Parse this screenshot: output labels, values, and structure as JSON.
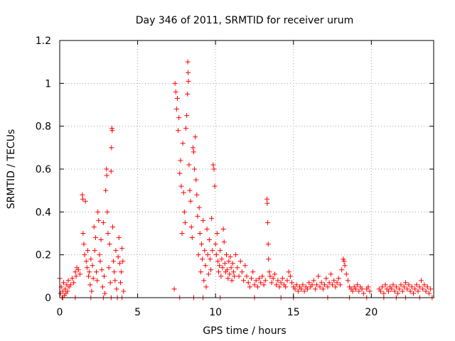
{
  "chart_data": {
    "type": "scatter",
    "title": "Day 346 of 2011, SRMTID for receiver urum",
    "xlabel": "GPS time / hours",
    "ylabel": "SRMTID / TECUs",
    "xlim": [
      0,
      24
    ],
    "ylim": [
      0,
      1.2
    ],
    "xticks": [
      0,
      5,
      10,
      15,
      20
    ],
    "xtick_labels": [
      "0",
      "5",
      "10",
      "15",
      "20"
    ],
    "yticks": [
      0,
      0.2,
      0.4,
      0.6,
      0.8,
      1.0,
      1.2
    ],
    "ytick_labels": [
      "0",
      "0.2",
      "0.4",
      "0.6",
      "0.8",
      "1",
      "1.2"
    ],
    "grid": true,
    "marker": "+",
    "color": "#ff0000",
    "series": [
      {
        "name": "SRMTID",
        "points": [
          [
            0.0,
            0.09
          ],
          [
            0.05,
            0.02
          ],
          [
            0.1,
            0.05
          ],
          [
            0.15,
            0.0
          ],
          [
            0.2,
            0.03
          ],
          [
            0.25,
            0.07
          ],
          [
            0.3,
            0.01
          ],
          [
            0.35,
            0.04
          ],
          [
            0.4,
            0.02
          ],
          [
            0.45,
            0.06
          ],
          [
            0.5,
            0.03
          ],
          [
            0.55,
            0.08
          ],
          [
            0.6,
            0.05
          ],
          [
            0.7,
            0.06
          ],
          [
            0.8,
            0.09
          ],
          [
            0.9,
            0.07
          ],
          [
            1.0,
            0.12
          ],
          [
            1.05,
            0.1
          ],
          [
            1.1,
            0.14
          ],
          [
            1.2,
            0.13
          ],
          [
            1.3,
            0.11
          ],
          [
            1.45,
            0.48
          ],
          [
            1.48,
            0.46
          ],
          [
            1.5,
            0.3
          ],
          [
            1.55,
            0.25
          ],
          [
            1.6,
            0.2
          ],
          [
            1.65,
            0.45
          ],
          [
            1.7,
            0.17
          ],
          [
            1.75,
            0.14
          ],
          [
            1.8,
            0.22
          ],
          [
            1.85,
            0.1
          ],
          [
            1.9,
            0.12
          ],
          [
            1.95,
            0.06
          ],
          [
            2.0,
            0.18
          ],
          [
            2.05,
            0.03
          ],
          [
            2.1,
            0.15
          ],
          [
            2.15,
            0.09
          ],
          [
            2.2,
            0.33
          ],
          [
            2.25,
            0.22
          ],
          [
            2.3,
            0.28
          ],
          [
            2.35,
            0.12
          ],
          [
            2.4,
            0.08
          ],
          [
            2.45,
            0.4
          ],
          [
            2.5,
            0.36
          ],
          [
            2.55,
            0.2
          ],
          [
            2.6,
            0.17
          ],
          [
            2.65,
            0.27
          ],
          [
            2.7,
            0.13
          ],
          [
            2.75,
            0.05
          ],
          [
            2.8,
            0.35
          ],
          [
            2.85,
            0.1
          ],
          [
            2.9,
            0.02
          ],
          [
            2.95,
            0.5
          ],
          [
            3.0,
            0.6
          ],
          [
            3.02,
            0.57
          ],
          [
            3.05,
            0.4
          ],
          [
            3.1,
            0.3
          ],
          [
            3.15,
            0.14
          ],
          [
            3.2,
            0.25
          ],
          [
            3.25,
            0.07
          ],
          [
            3.3,
            0.59
          ],
          [
            3.32,
            0.7
          ],
          [
            3.35,
            0.79
          ],
          [
            3.37,
            0.78
          ],
          [
            3.4,
            0.33
          ],
          [
            3.45,
            0.17
          ],
          [
            3.5,
            0.12
          ],
          [
            3.55,
            0.08
          ],
          [
            3.6,
            0.22
          ],
          [
            3.65,
            0.04
          ],
          [
            3.7,
            0.0
          ],
          [
            3.75,
            0.19
          ],
          [
            3.8,
            0.28
          ],
          [
            3.85,
            0.16
          ],
          [
            3.9,
            0.07
          ],
          [
            3.95,
            0.12
          ],
          [
            4.0,
            0.23
          ],
          [
            4.05,
            0.17
          ],
          [
            4.1,
            0.03
          ],
          [
            7.35,
            0.04
          ],
          [
            7.4,
            1.0
          ],
          [
            7.45,
            0.96
          ],
          [
            7.5,
            0.88
          ],
          [
            7.55,
            0.93
          ],
          [
            7.6,
            0.78
          ],
          [
            7.65,
            0.84
          ],
          [
            7.7,
            0.58
          ],
          [
            7.75,
            0.64
          ],
          [
            7.8,
            0.52
          ],
          [
            7.85,
            0.3
          ],
          [
            7.9,
            0.72
          ],
          [
            7.95,
            0.49
          ],
          [
            8.0,
            0.4
          ],
          [
            8.05,
            0.35
          ],
          [
            8.1,
            0.79
          ],
          [
            8.15,
            0.85
          ],
          [
            8.2,
            0.95
          ],
          [
            8.22,
            1.1
          ],
          [
            8.24,
            1.05
          ],
          [
            8.26,
            1.01
          ],
          [
            8.3,
            0.62
          ],
          [
            8.35,
            0.5
          ],
          [
            8.4,
            0.45
          ],
          [
            8.45,
            0.33
          ],
          [
            8.5,
            0.28
          ],
          [
            8.55,
            0.7
          ],
          [
            8.6,
            0.68
          ],
          [
            8.65,
            0.6
          ],
          [
            8.7,
            0.75
          ],
          [
            8.75,
            0.55
          ],
          [
            8.8,
            0.48
          ],
          [
            8.85,
            0.38
          ],
          [
            8.9,
            0.2
          ],
          [
            8.95,
            0.42
          ],
          [
            9.0,
            0.3
          ],
          [
            9.05,
            0.12
          ],
          [
            9.1,
            0.25
          ],
          [
            9.15,
            0.18
          ],
          [
            9.2,
            0.36
          ],
          [
            9.25,
            0.08
          ],
          [
            9.3,
            0.22
          ],
          [
            9.35,
            0.15
          ],
          [
            9.4,
            0.05
          ],
          [
            9.45,
            0.32
          ],
          [
            9.5,
            0.2
          ],
          [
            9.55,
            0.11
          ],
          [
            9.6,
            0.27
          ],
          [
            9.65,
            0.18
          ],
          [
            9.7,
            0.13
          ],
          [
            9.75,
            0.37
          ],
          [
            9.8,
            0.22
          ],
          [
            9.85,
            0.62
          ],
          [
            9.9,
            0.6
          ],
          [
            9.95,
            0.52
          ],
          [
            10.0,
            0.25
          ],
          [
            10.05,
            0.2
          ],
          [
            10.1,
            0.3
          ],
          [
            10.15,
            0.17
          ],
          [
            10.2,
            0.12
          ],
          [
            10.25,
            0.15
          ],
          [
            10.3,
            0.22
          ],
          [
            10.35,
            0.1
          ],
          [
            10.4,
            0.18
          ],
          [
            10.45,
            0.14
          ],
          [
            10.5,
            0.32
          ],
          [
            10.55,
            0.26
          ],
          [
            10.6,
            0.16
          ],
          [
            10.65,
            0.12
          ],
          [
            10.7,
            0.2
          ],
          [
            10.75,
            0.13
          ],
          [
            10.8,
            0.09
          ],
          [
            10.85,
            0.17
          ],
          [
            10.9,
            0.11
          ],
          [
            10.95,
            0.19
          ],
          [
            11.0,
            0.14
          ],
          [
            11.05,
            0.08
          ],
          [
            11.1,
            0.16
          ],
          [
            11.15,
            0.12
          ],
          [
            11.2,
            0.1
          ],
          [
            11.3,
            0.2
          ],
          [
            11.4,
            0.14
          ],
          [
            11.5,
            0.1
          ],
          [
            11.6,
            0.17
          ],
          [
            11.7,
            0.12
          ],
          [
            11.8,
            0.08
          ],
          [
            11.9,
            0.15
          ],
          [
            12.0,
            0.1
          ],
          [
            12.1,
            0.07
          ],
          [
            12.2,
            0.05
          ],
          [
            12.3,
            0.09
          ],
          [
            12.4,
            0.12
          ],
          [
            12.5,
            0.06
          ],
          [
            12.6,
            0.08
          ],
          [
            12.7,
            0.05
          ],
          [
            12.8,
            0.09
          ],
          [
            12.9,
            0.07
          ],
          [
            13.0,
            0.1
          ],
          [
            13.1,
            0.06
          ],
          [
            13.2,
            0.08
          ],
          [
            13.3,
            0.46
          ],
          [
            13.32,
            0.44
          ],
          [
            13.35,
            0.35
          ],
          [
            13.38,
            0.25
          ],
          [
            13.4,
            0.18
          ],
          [
            13.45,
            0.12
          ],
          [
            13.5,
            0.1
          ],
          [
            13.6,
            0.07
          ],
          [
            13.7,
            0.09
          ],
          [
            13.8,
            0.11
          ],
          [
            13.9,
            0.06
          ],
          [
            14.0,
            0.08
          ],
          [
            14.1,
            0.05
          ],
          [
            14.2,
            0.07
          ],
          [
            14.3,
            0.09
          ],
          [
            14.4,
            0.06
          ],
          [
            14.5,
            0.05
          ],
          [
            14.6,
            0.08
          ],
          [
            14.7,
            0.12
          ],
          [
            14.8,
            0.1
          ],
          [
            14.9,
            0.07
          ],
          [
            15.0,
            0.05
          ],
          [
            15.1,
            0.04
          ],
          [
            15.2,
            0.06
          ],
          [
            15.3,
            0.03
          ],
          [
            15.4,
            0.05
          ],
          [
            15.5,
            0.04
          ],
          [
            15.6,
            0.06
          ],
          [
            15.7,
            0.03
          ],
          [
            15.8,
            0.05
          ],
          [
            15.9,
            0.04
          ],
          [
            16.0,
            0.07
          ],
          [
            16.1,
            0.05
          ],
          [
            16.2,
            0.06
          ],
          [
            16.3,
            0.08
          ],
          [
            16.4,
            0.04
          ],
          [
            16.5,
            0.06
          ],
          [
            16.6,
            0.1
          ],
          [
            16.7,
            0.05
          ],
          [
            16.8,
            0.07
          ],
          [
            16.9,
            0.04
          ],
          [
            17.0,
            0.06
          ],
          [
            17.1,
            0.09
          ],
          [
            17.2,
            0.05
          ],
          [
            17.3,
            0.07
          ],
          [
            17.4,
            0.11
          ],
          [
            17.5,
            0.06
          ],
          [
            17.6,
            0.08
          ],
          [
            17.7,
            0.05
          ],
          [
            17.8,
            0.07
          ],
          [
            17.9,
            0.09
          ],
          [
            18.0,
            0.06
          ],
          [
            18.1,
            0.13
          ],
          [
            18.2,
            0.18
          ],
          [
            18.25,
            0.17
          ],
          [
            18.3,
            0.15
          ],
          [
            18.4,
            0.11
          ],
          [
            18.5,
            0.08
          ],
          [
            18.6,
            0.05
          ],
          [
            18.7,
            0.04
          ],
          [
            18.8,
            0.03
          ],
          [
            18.9,
            0.05
          ],
          [
            19.0,
            0.04
          ],
          [
            19.1,
            0.06
          ],
          [
            19.2,
            0.03
          ],
          [
            19.3,
            0.05
          ],
          [
            19.4,
            0.04
          ],
          [
            19.5,
            0.02
          ],
          [
            19.7,
            0.04
          ],
          [
            19.8,
            0.05
          ],
          [
            19.9,
            0.03
          ],
          [
            20.5,
            0.04
          ],
          [
            20.6,
            0.03
          ],
          [
            20.7,
            0.05
          ],
          [
            20.8,
            0.02
          ],
          [
            20.9,
            0.06
          ],
          [
            21.0,
            0.04
          ],
          [
            21.1,
            0.03
          ],
          [
            21.2,
            0.05
          ],
          [
            21.3,
            0.04
          ],
          [
            21.4,
            0.06
          ],
          [
            21.5,
            0.03
          ],
          [
            21.6,
            0.05
          ],
          [
            21.7,
            0.02
          ],
          [
            21.8,
            0.04
          ],
          [
            21.9,
            0.06
          ],
          [
            22.0,
            0.03
          ],
          [
            22.1,
            0.05
          ],
          [
            22.2,
            0.07
          ],
          [
            22.3,
            0.04
          ],
          [
            22.4,
            0.06
          ],
          [
            22.5,
            0.03
          ],
          [
            22.6,
            0.05
          ],
          [
            22.7,
            0.02
          ],
          [
            22.8,
            0.04
          ],
          [
            22.9,
            0.06
          ],
          [
            23.0,
            0.03
          ],
          [
            23.1,
            0.05
          ],
          [
            23.2,
            0.08
          ],
          [
            23.3,
            0.04
          ],
          [
            23.4,
            0.06
          ],
          [
            23.5,
            0.03
          ],
          [
            23.6,
            0.05
          ],
          [
            23.7,
            0.02
          ],
          [
            23.8,
            0.04
          ],
          [
            0.2,
            0.0
          ],
          [
            1.0,
            0.0
          ],
          [
            2.0,
            0.0
          ],
          [
            2.8,
            0.0
          ],
          [
            3.3,
            0.0
          ],
          [
            4.0,
            0.0
          ],
          [
            7.7,
            0.0
          ],
          [
            8.6,
            0.0
          ],
          [
            9.2,
            0.0
          ],
          [
            10.3,
            0.0
          ],
          [
            12.5,
            0.0
          ],
          [
            14.2,
            0.0
          ],
          [
            15.0,
            0.0
          ],
          [
            17.2,
            0.0
          ],
          [
            18.6,
            0.0
          ],
          [
            19.7,
            0.0
          ],
          [
            20.8,
            0.0
          ],
          [
            21.6,
            0.0
          ],
          [
            22.2,
            0.0
          ],
          [
            23.1,
            0.0
          ],
          [
            23.9,
            0.0
          ]
        ]
      }
    ]
  }
}
